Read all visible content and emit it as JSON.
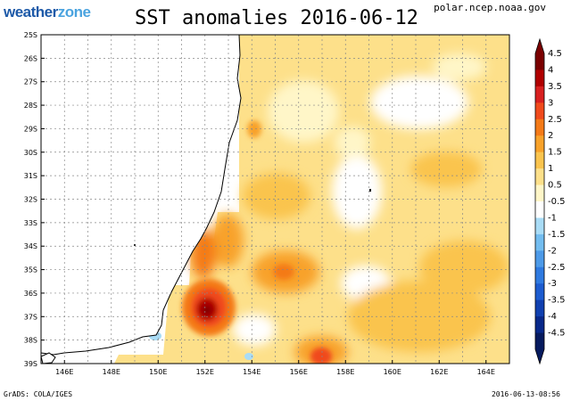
{
  "header": {
    "logo_main": "weather",
    "logo_accent": "zone",
    "title": "SST anomalies 2016-06-12",
    "source": "polar.ncep.noaa.gov"
  },
  "footer": {
    "credit": "GrADS: COLA/IGES",
    "timestamp": "2016-06-13-08:56"
  },
  "map": {
    "lat_labels": [
      "25S",
      "26S",
      "27S",
      "28S",
      "29S",
      "30S",
      "31S",
      "32S",
      "33S",
      "34S",
      "35S",
      "36S",
      "37S",
      "38S",
      "39S"
    ],
    "lon_labels": [
      "146E",
      "148E",
      "150E",
      "152E",
      "154E",
      "156E",
      "158E",
      "160E",
      "162E",
      "164E"
    ]
  },
  "colorbar": {
    "labels": [
      "4.5",
      "4",
      "3.5",
      "3",
      "2.5",
      "2",
      "1.5",
      "1",
      "0.5",
      "-0.5",
      "-1",
      "-1.5",
      "-2",
      "-2.5",
      "-3",
      "-3.5",
      "-4",
      "-4.5"
    ],
    "colors": [
      "#7a0000",
      "#b00000",
      "#d82020",
      "#f04a1c",
      "#f47a18",
      "#f8a22a",
      "#fac44e",
      "#fde08a",
      "#fff6c8",
      "#ffffff",
      "#a9dcf6",
      "#73bdf0",
      "#4d9ae8",
      "#2f7ae0",
      "#1d5cd0",
      "#1040b0",
      "#08288a",
      "#061a5e"
    ]
  }
}
